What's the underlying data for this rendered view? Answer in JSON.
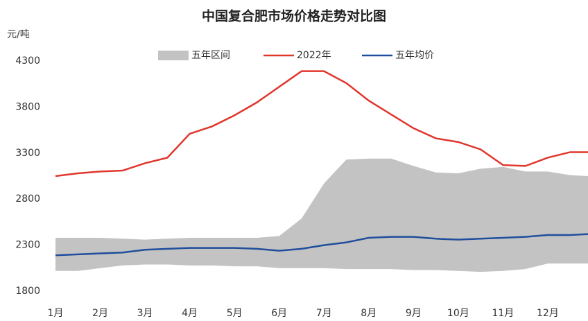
{
  "chart_data": {
    "type": "line",
    "title": "中国复合肥市场价格走势对比图",
    "y_label": "元/吨",
    "x": [
      0,
      0.5,
      1,
      1.5,
      2,
      2.5,
      3,
      3.5,
      4,
      4.5,
      5,
      5.5,
      6,
      6.5,
      7,
      7.5,
      8,
      8.5,
      9,
      9.5,
      10,
      10.5,
      11,
      11.5,
      11.9
    ],
    "xlim": [
      0,
      11.9
    ],
    "xticks": [
      {
        "value": 0,
        "label": "1月"
      },
      {
        "value": 1,
        "label": "2月"
      },
      {
        "value": 2,
        "label": "3月"
      },
      {
        "value": 3,
        "label": "4月"
      },
      {
        "value": 4,
        "label": "5月"
      },
      {
        "value": 5,
        "label": "6月"
      },
      {
        "value": 6,
        "label": "7月"
      },
      {
        "value": 7,
        "label": "8月"
      },
      {
        "value": 8,
        "label": "9月"
      },
      {
        "value": 9,
        "label": "10月"
      },
      {
        "value": 10,
        "label": "11月"
      },
      {
        "value": 11,
        "label": "12月"
      }
    ],
    "ylim": [
      1800,
      4300
    ],
    "yticks": [
      1800,
      2300,
      2800,
      3300,
      3800,
      4300
    ],
    "grid": false,
    "legend": "top",
    "series": [
      {
        "name": "五年区间",
        "type": "band",
        "color": "#c3c3c3",
        "low": [
          2020,
          2020,
          2050,
          2080,
          2090,
          2090,
          2080,
          2080,
          2070,
          2070,
          2050,
          2050,
          2050,
          2040,
          2040,
          2040,
          2030,
          2030,
          2020,
          2010,
          2020,
          2040,
          2100,
          2100,
          2100
        ],
        "high": [
          2380,
          2380,
          2380,
          2370,
          2360,
          2370,
          2380,
          2380,
          2380,
          2380,
          2400,
          2590,
          2970,
          3230,
          3240,
          3240,
          3160,
          3090,
          3080,
          3130,
          3150,
          3100,
          3100,
          3060,
          3050
        ]
      },
      {
        "name": "2022年",
        "type": "line",
        "color": "#e0362c",
        "values": [
          3050,
          3080,
          3100,
          3110,
          3190,
          3250,
          3510,
          3590,
          3710,
          3850,
          4020,
          4190,
          4190,
          4060,
          3870,
          3720,
          3570,
          3460,
          3420,
          3340,
          3170,
          3160,
          3250,
          3310,
          3310
        ]
      },
      {
        "name": "五年均价",
        "type": "line",
        "color": "#1f4e9c",
        "values": [
          2190,
          2200,
          2210,
          2220,
          2250,
          2260,
          2270,
          2270,
          2270,
          2260,
          2240,
          2260,
          2300,
          2330,
          2380,
          2390,
          2390,
          2370,
          2360,
          2370,
          2380,
          2390,
          2410,
          2410,
          2420
        ]
      }
    ]
  }
}
